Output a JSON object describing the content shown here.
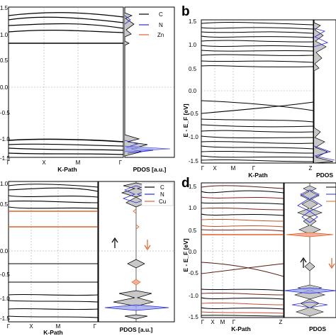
{
  "figure": {
    "panels": [
      {
        "id": "a",
        "letter": "",
        "yticks": [
          "1.5",
          "1.0",
          "0.5",
          "0.0",
          "-0.5",
          "-1.0",
          "-1.5"
        ],
        "xticks": [
          "Γ",
          "X",
          "M",
          "Γ"
        ],
        "xlabel": "K-Path",
        "ylabel": "",
        "pdos_label": "PDOS [a.u.]",
        "pdos_ticks": [],
        "legend": [
          {
            "label": "C",
            "color": "#000000"
          },
          {
            "label": "N",
            "color": "#2b2bdd"
          },
          {
            "label": "Zn",
            "color": "#e0602a"
          }
        ],
        "arrows": []
      },
      {
        "id": "b",
        "letter": "b",
        "yticks": [
          "1.5",
          "1.0",
          "0.5",
          "0.0",
          "-0.5",
          "-1.0",
          "-1.5"
        ],
        "xticks": [
          "Γ",
          "X",
          "M",
          "Γ",
          "Z"
        ],
        "xlabel": "K-Path",
        "ylabel": "E - E_F [eV]",
        "pdos_label": "PDOS",
        "pdos_ticks": [],
        "legend": [],
        "arrows": []
      },
      {
        "id": "c",
        "letter": "",
        "yticks": [
          "1.0",
          "0.5",
          "0.0",
          "-0.5",
          "-1.0",
          "-1.5"
        ],
        "xticks": [
          "Γ",
          "X",
          "M",
          "Γ"
        ],
        "xlabel": "K-Path",
        "ylabel": "",
        "pdos_label": "PDOS [a.u.]",
        "pdos_ticks": [],
        "legend": [
          {
            "label": "C",
            "color": "#000000"
          },
          {
            "label": "N",
            "color": "#2b2bdd"
          },
          {
            "label": "Cu",
            "color": "#e0602a"
          }
        ],
        "arrows": [
          {
            "dir": "up",
            "color": "#000000"
          },
          {
            "dir": "down",
            "color": "#e0602a"
          }
        ]
      },
      {
        "id": "d",
        "letter": "d",
        "yticks": [
          "1.5",
          "1.0",
          "0.5",
          "0.0",
          "-0.5",
          "-1.0",
          "-1.5"
        ],
        "xticks": [
          "Γ",
          "X",
          "M",
          "Γ",
          "Z"
        ],
        "xlabel": "K-Path",
        "ylabel": "E - E_F [eV]",
        "pdos_label": "PDOS",
        "pdos_ticks": [],
        "legend": [],
        "arrows": [
          {
            "dir": "up",
            "color": "#000000"
          },
          {
            "dir": "down",
            "color": "#e0602a"
          }
        ]
      }
    ],
    "colors": {
      "carbon": "#000000",
      "nitrogen": "#2b2bdd",
      "metal": "#e0602a",
      "grid": "#9a9a9a"
    }
  }
}
